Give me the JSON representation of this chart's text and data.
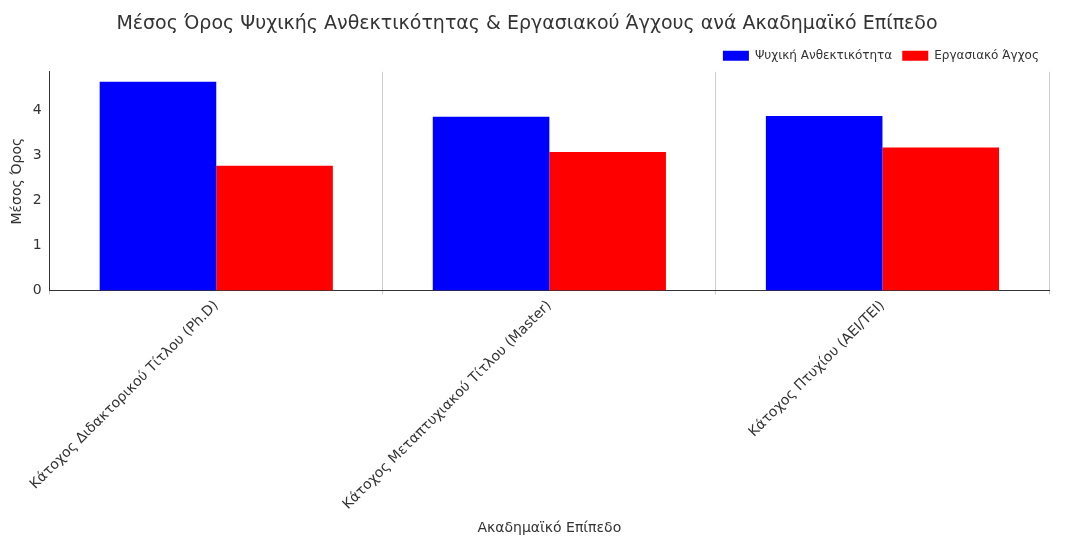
{
  "chart_data": {
    "type": "bar",
    "title": "Μέσος Όρος Ψυχικής Ανθεκτικότητας & Εργασιακού Άγχους ανά Ακαδημαϊκό Επίπεδο",
    "xlabel": "Ακαδημαϊκό Επίπεδο",
    "ylabel": "Μέσος Όρος",
    "categories": [
      "Κάτοχος Διδακτορικού Τίτλου (Ph.D)",
      "Κάτοχος Μεταπτυχιακού Τίτλου (Master)",
      "Κάτοχος Πτυχίου (ΑΕΙ/ΤΕΙ)"
    ],
    "series": [
      {
        "name": "Ψυχική Ανθεκτικότητα",
        "color": "#0000ff",
        "values": [
          4.64,
          3.86,
          3.88
        ]
      },
      {
        "name": "Εργασιακό Άγχος",
        "color": "#ff0000",
        "values": [
          2.77,
          3.08,
          3.18
        ]
      }
    ],
    "ylim": [
      0,
      4.86
    ],
    "yticks": [
      0,
      1,
      2,
      3,
      4
    ],
    "grid": "x",
    "legend": "top right"
  }
}
